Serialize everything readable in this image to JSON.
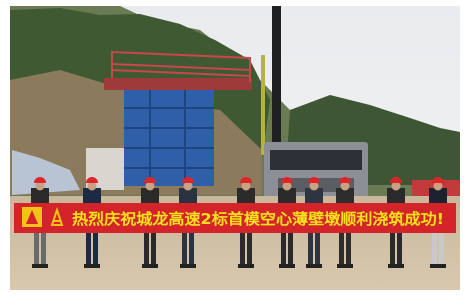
{
  "banner": {
    "text": "热烈庆祝城龙高速2标首模空心薄壁墩顺利浇筑成功!"
  }
}
